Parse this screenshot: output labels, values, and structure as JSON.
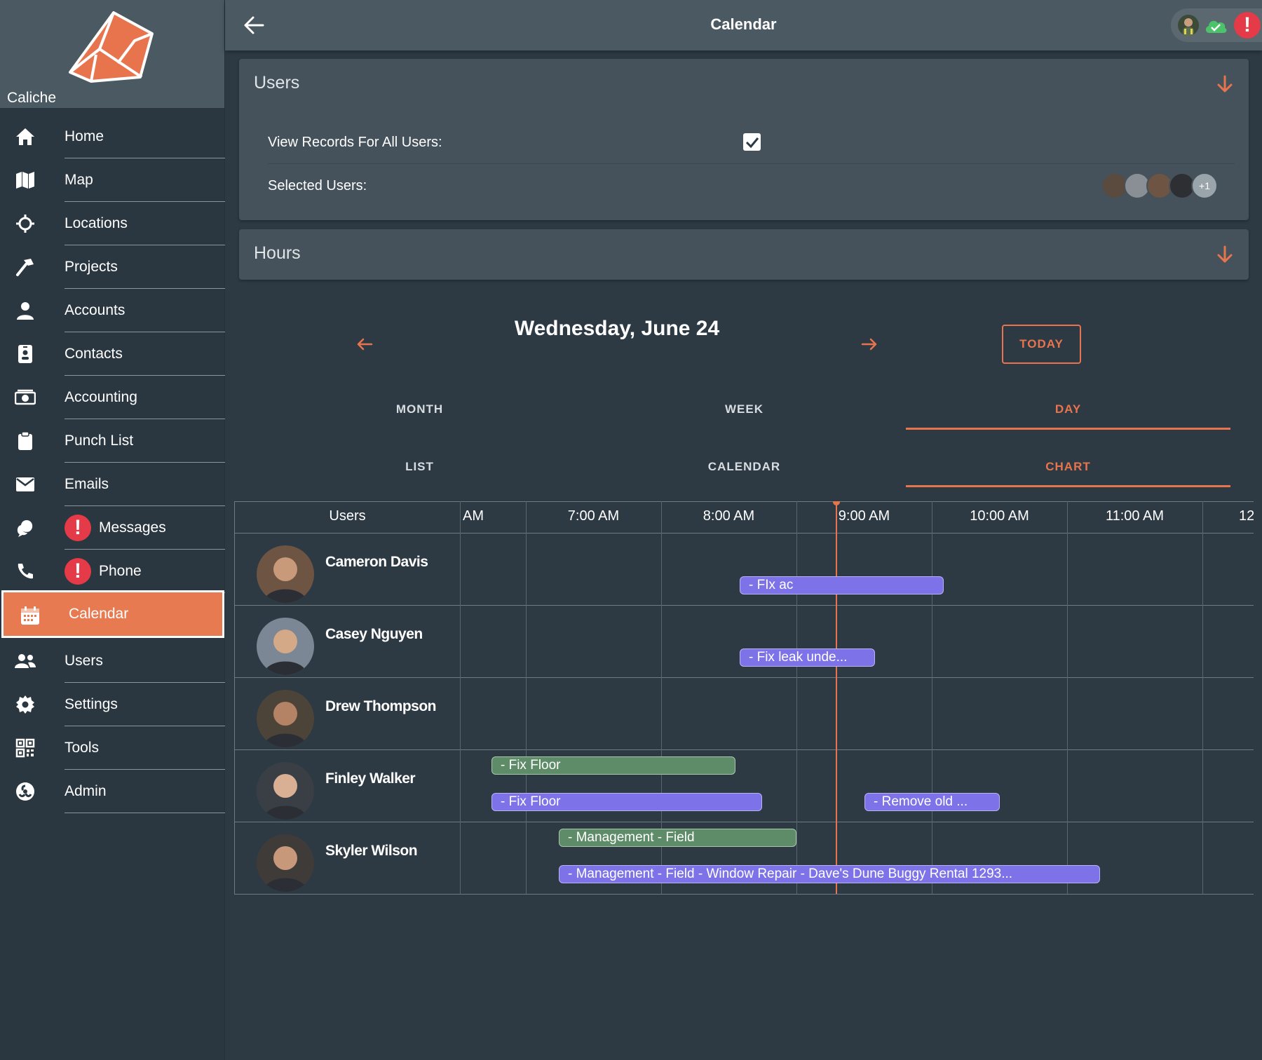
{
  "app": {
    "brand_name": "Caliche",
    "page_title": "Calendar"
  },
  "colors": {
    "accent": "#e8744d",
    "sidebar_active": "#e87a52",
    "bar_blue": "#7d72e8",
    "bar_green": "#5e8c68",
    "alert": "#e53a47"
  },
  "sidebar": {
    "items": [
      {
        "label": "Home",
        "icon": "home-icon"
      },
      {
        "label": "Map",
        "icon": "map-icon"
      },
      {
        "label": "Locations",
        "icon": "crosshair-icon"
      },
      {
        "label": "Projects",
        "icon": "hammer-icon"
      },
      {
        "label": "Accounts",
        "icon": "person-icon"
      },
      {
        "label": "Contacts",
        "icon": "contact-card-icon"
      },
      {
        "label": "Accounting",
        "icon": "money-icon"
      },
      {
        "label": "Punch List",
        "icon": "clipboard-icon"
      },
      {
        "label": "Emails",
        "icon": "mail-icon"
      },
      {
        "label": "Messages",
        "icon": "chat-icon",
        "badge": "!"
      },
      {
        "label": "Phone",
        "icon": "phone-icon",
        "badge": "!"
      },
      {
        "label": "Calendar",
        "icon": "calendar-icon",
        "active": true
      },
      {
        "label": "Users",
        "icon": "users-icon"
      },
      {
        "label": "Settings",
        "icon": "gear-icon"
      },
      {
        "label": "Tools",
        "icon": "qr-icon"
      },
      {
        "label": "Admin",
        "icon": "admin-icon"
      }
    ]
  },
  "topbar": {
    "alert_badge": "!"
  },
  "users_panel": {
    "title": "Users",
    "view_all_label": "View Records For All Users:",
    "view_all_checked": true,
    "selected_label": "Selected Users:",
    "selected_more": "+1"
  },
  "hours_panel": {
    "title": "Hours"
  },
  "date_nav": {
    "date_title": "Wednesday, June 24",
    "today_label": "TODAY"
  },
  "range_tabs": [
    {
      "label": "MONTH",
      "active": false
    },
    {
      "label": "WEEK",
      "active": false
    },
    {
      "label": "DAY",
      "active": true
    }
  ],
  "view_tabs": [
    {
      "label": "LIST",
      "active": false
    },
    {
      "label": "CALENDAR",
      "active": false
    },
    {
      "label": "CHART",
      "active": true
    }
  ],
  "gantt": {
    "users_header": "Users",
    "time_headers": [
      "AM",
      "7:00 AM",
      "8:00 AM",
      "9:00 AM",
      "10:00 AM",
      "11:00 AM",
      "12"
    ],
    "rows": [
      {
        "name": "Cameron Davis",
        "bars": [
          {
            "label": "- FIx ac",
            "color": "blue",
            "lane": 1
          }
        ]
      },
      {
        "name": "Casey Nguyen",
        "bars": [
          {
            "label": "- Fix leak unde...",
            "color": "blue",
            "lane": 1
          }
        ]
      },
      {
        "name": "Drew Thompson",
        "bars": []
      },
      {
        "name": "Finley Walker",
        "bars": [
          {
            "label": "- Fix Floor",
            "color": "green",
            "lane": 0
          },
          {
            "label": "- Fix Floor",
            "color": "blue",
            "lane": 1
          },
          {
            "label": "- Remove old ...",
            "color": "blue",
            "lane": 1
          }
        ]
      },
      {
        "name": "Skyler Wilson",
        "bars": [
          {
            "label": "- Management - Field",
            "color": "green",
            "lane": 0
          },
          {
            "label": "- Management - Field - Window Repair - Dave's Dune Buggy Rental 1293...",
            "color": "blue",
            "lane": 1
          }
        ]
      }
    ]
  }
}
